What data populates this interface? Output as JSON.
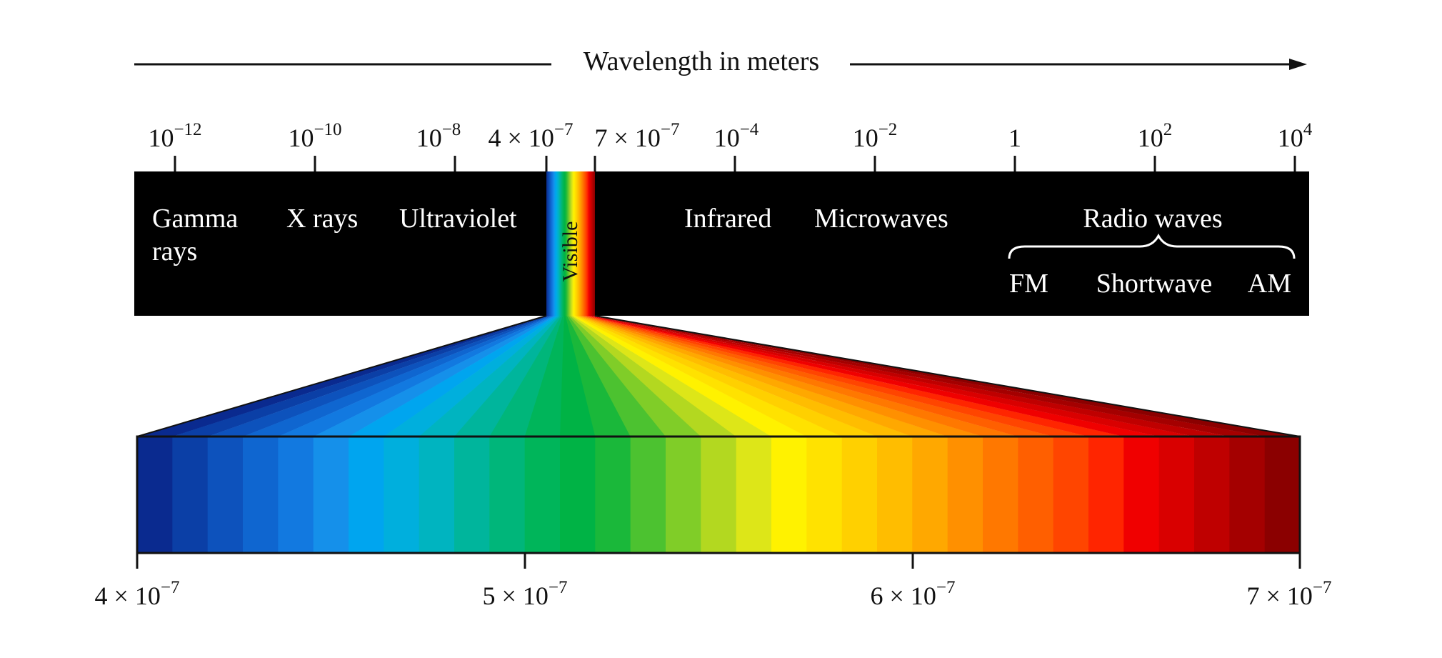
{
  "axis_title": "Wavelength in meters",
  "top_ticks": [
    {
      "base": "10",
      "exp": "−12"
    },
    {
      "base": "10",
      "exp": "−10"
    },
    {
      "base": "10",
      "exp": "−8"
    },
    {
      "base": "4 × 10",
      "exp": "−7"
    },
    {
      "base": "7 × 10",
      "exp": "−7"
    },
    {
      "base": "10",
      "exp": "−4"
    },
    {
      "base": "10",
      "exp": "−2"
    },
    {
      "base": "1",
      "exp": ""
    },
    {
      "base": "10",
      "exp": "2"
    },
    {
      "base": "10",
      "exp": "4"
    }
  ],
  "bands": {
    "gamma_line1": "Gamma",
    "gamma_line2": "rays",
    "xrays": "X rays",
    "ultraviolet": "Ultraviolet",
    "visible": "Visible",
    "infrared": "Infrared",
    "microwaves": "Microwaves",
    "radio": "Radio waves",
    "fm": "FM",
    "shortwave": "Shortwave",
    "am": "AM"
  },
  "bottom_ticks": [
    {
      "base": "4 × 10",
      "exp": "−7"
    },
    {
      "base": "5 × 10",
      "exp": "−7"
    },
    {
      "base": "6 × 10",
      "exp": "−7"
    },
    {
      "base": "7 × 10",
      "exp": "−7"
    }
  ],
  "visible_spectrum_colors": [
    "#0a2a8f",
    "#0b3fa6",
    "#0d52bc",
    "#0f66d0",
    "#1279e0",
    "#1590ea",
    "#00a5ef",
    "#00afdd",
    "#00b4c0",
    "#00b59c",
    "#00b67a",
    "#00b55a",
    "#00b345",
    "#1ab83a",
    "#4cc230",
    "#80cd28",
    "#b3d820",
    "#dde618",
    "#fff200",
    "#ffe200",
    "#ffd000",
    "#ffbd00",
    "#ffa800",
    "#ff9000",
    "#ff7800",
    "#ff5f00",
    "#ff4500",
    "#ff2500",
    "#f00000",
    "#d90000",
    "#bf0000",
    "#a40000",
    "#8b0000"
  ]
}
